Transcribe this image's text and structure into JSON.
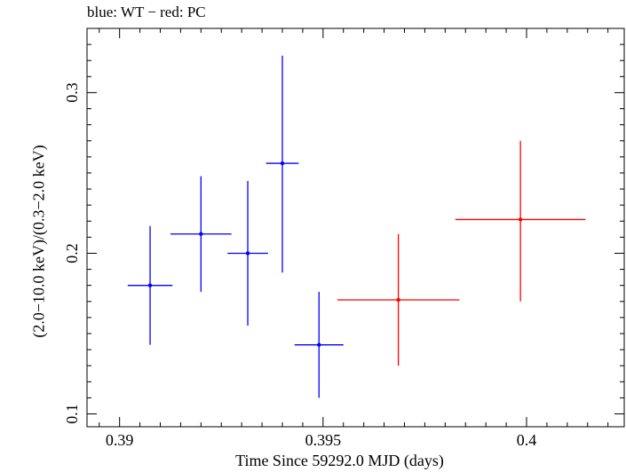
{
  "chart_data": {
    "type": "scatter",
    "title": "blue: WT − red: PC",
    "xlabel": "Time Since 59292.0 MJD (days)",
    "ylabel": "(2.0−10.0 keV)/(0.3−2.0 keV)",
    "xlim": [
      0.3892,
      0.4024
    ],
    "ylim": [
      0.092,
      0.34
    ],
    "xticks": [
      0.39,
      0.395,
      0.4
    ],
    "xtick_labels": [
      "0.39",
      "0.395",
      "0.4"
    ],
    "yticks": [
      0.1,
      0.2,
      0.3
    ],
    "ytick_labels": [
      "0.1",
      "0.2",
      "0.3"
    ],
    "grid": false,
    "series": [
      {
        "color": "#0000ff",
        "points": [
          {
            "x": 0.39075,
            "y": 0.18,
            "xerr": 0.00055,
            "ylo": 0.143,
            "yhi": 0.217
          },
          {
            "x": 0.392,
            "y": 0.212,
            "xerr": 0.00075,
            "ylo": 0.176,
            "yhi": 0.248
          },
          {
            "x": 0.39315,
            "y": 0.2,
            "xerr": 0.0005,
            "ylo": 0.155,
            "yhi": 0.245
          },
          {
            "x": 0.394,
            "y": 0.256,
            "xerr": 0.0004,
            "ylo": 0.188,
            "yhi": 0.323
          },
          {
            "x": 0.3949,
            "y": 0.143,
            "xerr": 0.0006,
            "ylo": 0.11,
            "yhi": 0.176
          }
        ]
      },
      {
        "color": "#ff0000",
        "points": [
          {
            "x": 0.39685,
            "y": 0.171,
            "xerr": 0.0015,
            "ylo": 0.13,
            "yhi": 0.212
          },
          {
            "x": 0.39985,
            "y": 0.221,
            "xerr": 0.0016,
            "ylo": 0.17,
            "yhi": 0.27
          }
        ]
      }
    ]
  }
}
